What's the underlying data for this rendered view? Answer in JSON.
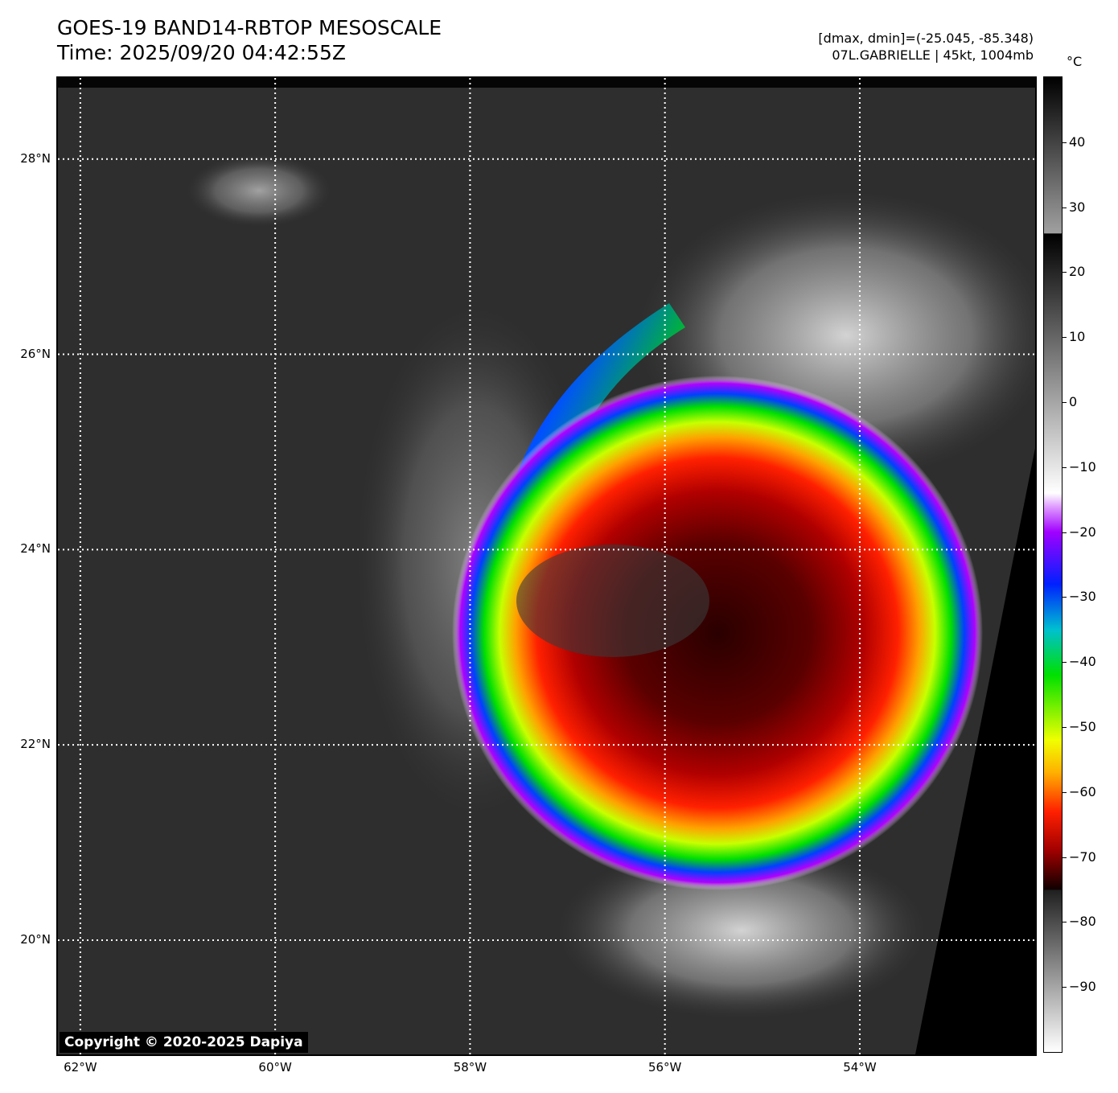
{
  "header": {
    "title": "GOES-19 BAND14-RBTOP MESOSCALE",
    "time": "Time: 2025/09/20 04:42:55Z",
    "range": "[dmax, dmin]=(-25.045, -85.348)",
    "storm": "07L.GABRIELLE | 45kt, 1004mb"
  },
  "colorbar": {
    "unit": "°C",
    "ticks": [
      "40",
      "30",
      "20",
      "10",
      "0",
      "−10",
      "−20",
      "−30",
      "−40",
      "−50",
      "−60",
      "−70",
      "−80",
      "−90"
    ],
    "tick_values": [
      40,
      30,
      20,
      10,
      0,
      -10,
      -20,
      -30,
      -40,
      -50,
      -60,
      -70,
      -80,
      -90
    ],
    "range": [
      -100,
      50
    ]
  },
  "map": {
    "copyright": "Copyright © 2020-2025 Dapiya",
    "lat_labels": [
      "28°N",
      "26°N",
      "24°N",
      "22°N",
      "20°N"
    ],
    "lon_labels": [
      "62°W",
      "60°W",
      "58°W",
      "56°W",
      "54°W"
    ],
    "lat_values": [
      28,
      26,
      24,
      22,
      20
    ],
    "lon_values": [
      -62,
      -60,
      -58,
      -56,
      -54
    ],
    "extent": {
      "lon_min": -62.23,
      "lon_max": -52.2,
      "lat_min": 18.83,
      "lat_max": 28.83
    }
  }
}
